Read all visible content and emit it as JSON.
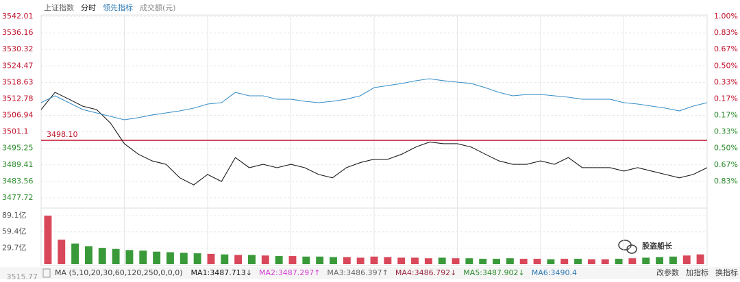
{
  "tabs": [
    "上证指数",
    "分时",
    "领先指标",
    "成交额(元)"
  ],
  "chart_data": {
    "type": "line",
    "reference": {
      "value": 3498.1,
      "label": "3498.10",
      "color": "#c0102a"
    },
    "ylim": [
      3477.72,
      3542.01
    ],
    "yticks": [
      3542.01,
      3536.16,
      3530.32,
      3524.47,
      3518.63,
      3512.78,
      3506.94,
      3501.1,
      3495.25,
      3489.41,
      3483.56,
      3477.72
    ],
    "y2ticks": [
      {
        "value": 1.0,
        "label": "1.00%"
      },
      {
        "value": 0.83,
        "label": "0.83%"
      },
      {
        "value": 0.67,
        "label": "0.67%"
      },
      {
        "value": 0.5,
        "label": "0.50%"
      },
      {
        "value": 0.33,
        "label": "0.33%"
      },
      {
        "value": 0.17,
        "label": "0.17%"
      },
      {
        "value": -0.17,
        "label": "0.17%"
      },
      {
        "value": -0.33,
        "label": "0.33%"
      },
      {
        "value": -0.5,
        "label": "0.50%"
      },
      {
        "value": -0.67,
        "label": "0.67%"
      },
      {
        "value": -0.83,
        "label": "0.83%"
      }
    ],
    "grid": true,
    "series": [
      {
        "color": "#1a1a1a",
        "values": [
          3509.0,
          3515.1,
          3512.7,
          3510.2,
          3509.0,
          3504.2,
          3496.9,
          3493.2,
          3490.8,
          3489.6,
          3484.8,
          3482.3,
          3486.0,
          3483.5,
          3492.0,
          3488.4,
          3489.6,
          3488.4,
          3489.6,
          3488.4,
          3486.0,
          3484.8,
          3488.4,
          3490.2,
          3491.4,
          3491.4,
          3493.2,
          3495.7,
          3497.5,
          3496.9,
          3496.9,
          3495.7,
          3493.2,
          3490.8,
          3489.6,
          3489.6,
          3490.8,
          3489.6,
          3492.0,
          3488.4,
          3488.4,
          3488.4,
          3487.2,
          3488.4,
          3487.2,
          3486.0,
          3484.8,
          3486.0,
          3488.4
        ]
      },
      {
        "color": "#3a8fc8",
        "values": [
          3511.44,
          3513.87,
          3511.44,
          3509.02,
          3507.8,
          3506.59,
          3505.38,
          3506.11,
          3507.08,
          3507.8,
          3508.53,
          3509.5,
          3510.96,
          3511.44,
          3515.08,
          3513.87,
          3513.87,
          3512.66,
          3512.66,
          3511.93,
          3511.44,
          3511.93,
          3512.66,
          3513.87,
          3516.78,
          3517.51,
          3518.24,
          3519.21,
          3519.93,
          3519.21,
          3518.72,
          3518.24,
          3516.78,
          3515.08,
          3513.87,
          3514.35,
          3514.35,
          3513.87,
          3513.38,
          3512.66,
          3512.66,
          3512.66,
          3511.44,
          3510.96,
          3510.23,
          3509.5,
          3508.53,
          3510.23,
          3511.44
        ]
      }
    ],
    "volume": {
      "type": "bar",
      "ylim": [
        0,
        98
      ],
      "yticks": [
        {
          "value": 89.1,
          "label": "89.1亿"
        },
        {
          "value": 59.4,
          "label": "59.4亿"
        },
        {
          "value": 29.7,
          "label": "29.7亿"
        }
      ],
      "up_color": "#d9485a",
      "down_color": "#3a9a3a",
      "values": [
        89.1,
        45,
        38,
        33,
        30,
        28,
        26,
        25,
        23,
        22,
        21,
        20,
        19,
        18,
        17,
        17,
        16,
        15,
        15,
        14,
        14,
        13,
        13,
        12,
        14,
        13,
        12,
        12,
        11,
        12,
        11,
        11,
        10,
        10,
        11,
        10,
        10,
        9,
        10,
        10,
        9,
        9,
        10,
        11,
        12,
        13,
        14,
        16,
        18
      ]
    },
    "bottom_value": "3515.77"
  },
  "ma_bar": {
    "title": "MA (5,10,20,30,60,120,250,0,0,0)",
    "items": [
      {
        "label": "MA1:3487.713↓",
        "color": "#111111"
      },
      {
        "label": "MA2:3487.297↑",
        "color": "#d23cd2"
      },
      {
        "label": "MA3:3486.397↑",
        "color": "#666666"
      },
      {
        "label": "MA4:3486.792↓",
        "color": "#9a2840"
      },
      {
        "label": "MA5:3487.902↓",
        "color": "#2a8a2a"
      },
      {
        "label": "MA6:3490.4",
        "color": "#2f7ab5"
      }
    ],
    "buttons": [
      "改参数",
      "加指标",
      "换指标"
    ]
  },
  "watermark": "股盗船长"
}
